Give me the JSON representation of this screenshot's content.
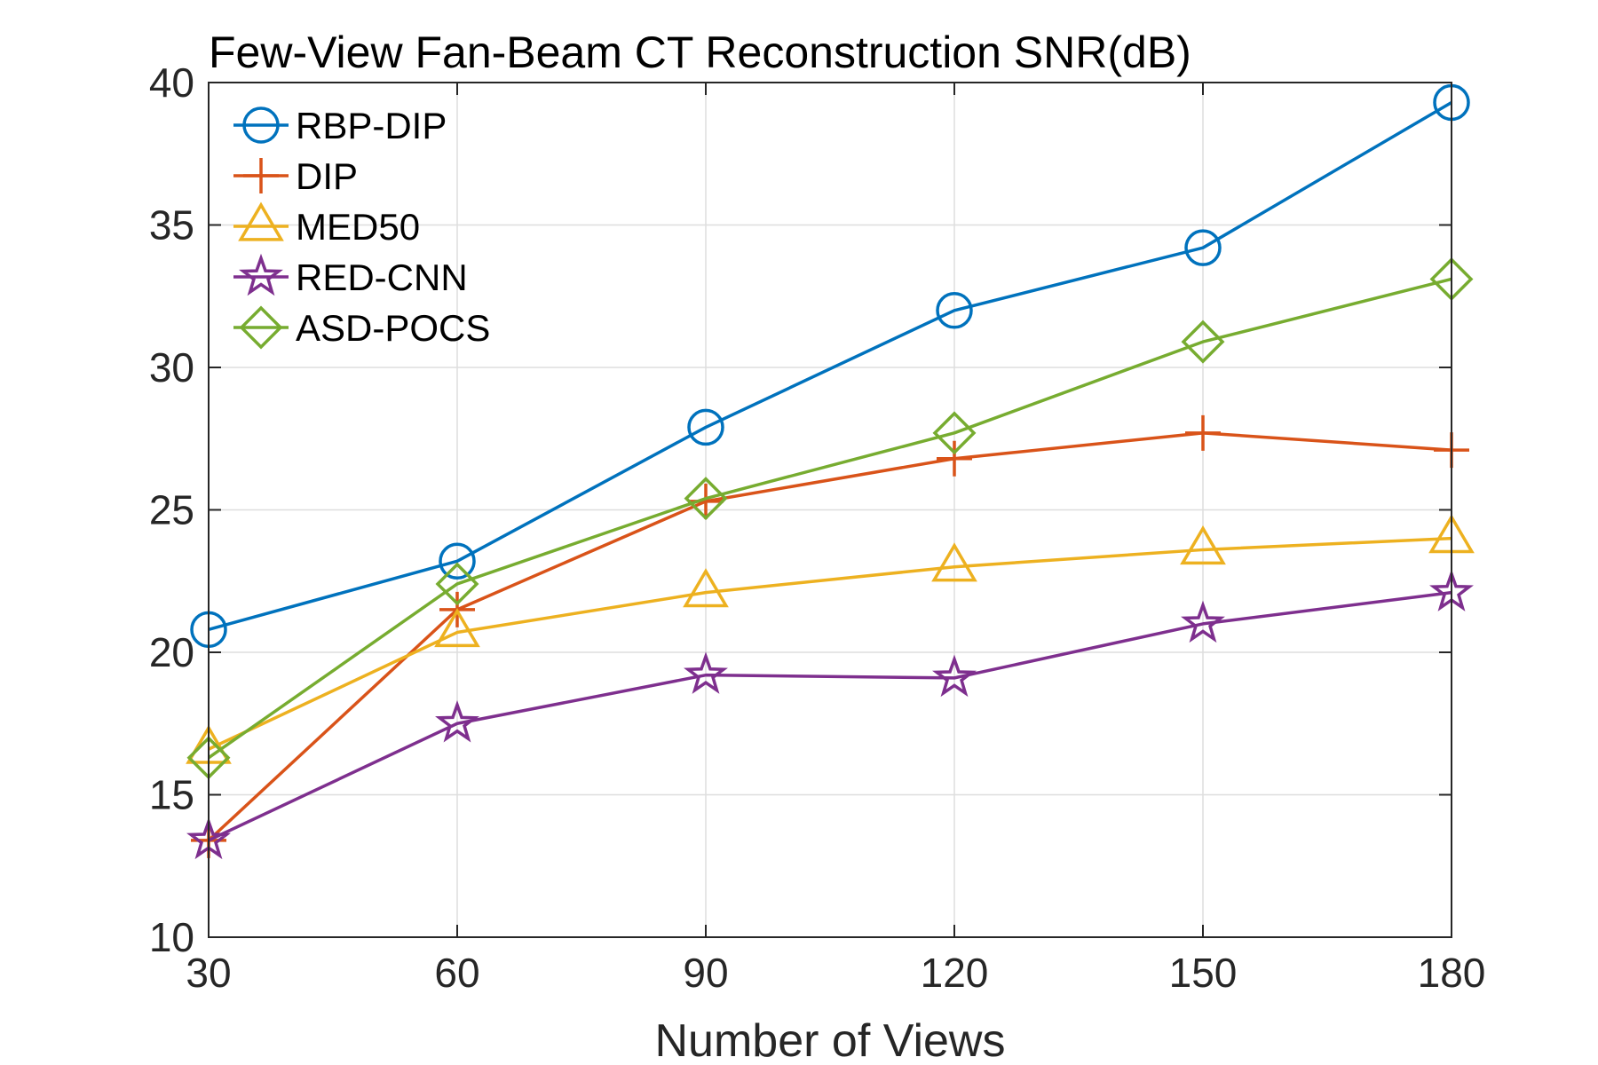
{
  "chart_data": {
    "type": "line",
    "title": "Few-View Fan-Beam CT Reconstruction SNR(dB)",
    "xlabel": "Number of Views",
    "ylabel": "",
    "x": [
      30,
      60,
      90,
      120,
      150,
      180
    ],
    "xlim": [
      30,
      180
    ],
    "ylim": [
      10,
      40
    ],
    "xticks": [
      30,
      60,
      90,
      120,
      150,
      180
    ],
    "yticks": [
      10,
      15,
      20,
      25,
      30,
      35,
      40
    ],
    "grid": true,
    "legend_position": "top-left",
    "series": [
      {
        "name": "RBP-DIP",
        "marker": "circle",
        "color": "#0072BD",
        "values": [
          20.8,
          23.2,
          27.9,
          32.0,
          34.2,
          39.3
        ]
      },
      {
        "name": "DIP",
        "marker": "plus",
        "color": "#D95319",
        "values": [
          13.4,
          21.5,
          25.3,
          26.8,
          27.7,
          27.1
        ]
      },
      {
        "name": "MED50",
        "marker": "triangle",
        "color": "#EDB120",
        "values": [
          16.6,
          20.7,
          22.1,
          23.0,
          23.6,
          24.0
        ]
      },
      {
        "name": "RED-CNN",
        "marker": "star",
        "color": "#7E2F8E",
        "values": [
          13.4,
          17.5,
          19.2,
          19.1,
          21.0,
          22.1
        ]
      },
      {
        "name": "ASD-POCS",
        "marker": "diamond",
        "color": "#77AC30",
        "values": [
          16.3,
          22.4,
          25.4,
          27.7,
          30.9,
          33.1
        ]
      }
    ]
  }
}
